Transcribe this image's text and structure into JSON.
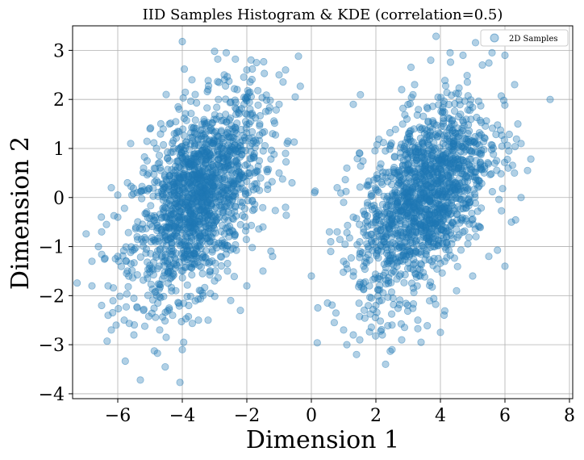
{
  "chart_data": {
    "type": "scatter",
    "title": "IID Samples Histogram & KDE (correlation=0.5)",
    "xlabel": "Dimension 1",
    "ylabel": "Dimension 2",
    "xlim": [
      -7.4,
      8.1
    ],
    "ylim": [
      -4.1,
      3.5
    ],
    "xticks": [
      -6,
      -4,
      -2,
      0,
      2,
      4,
      6,
      8
    ],
    "yticks": [
      -4,
      -3,
      -2,
      -1,
      0,
      1,
      2,
      3
    ],
    "xtick_labels": [
      "−6",
      "−4",
      "−2",
      "0",
      "2",
      "4",
      "6",
      "8"
    ],
    "ytick_labels": [
      "−4",
      "−3",
      "−2",
      "−1",
      "0",
      "1",
      "2",
      "3"
    ],
    "grid": true,
    "legend_position": "top-right",
    "point_color": "#1f77b4",
    "point_alpha": 0.35,
    "series": [
      {
        "name": "2D Samples",
        "clusters": [
          {
            "center": [
              -3.5,
              0.0
            ],
            "std": [
              1.0,
              1.0
            ],
            "correlation": 0.5,
            "count": 1500
          },
          {
            "center": [
              3.5,
              0.0
            ],
            "std": [
              1.0,
              1.0
            ],
            "correlation": 0.5,
            "count": 1500
          }
        ],
        "points": [
          [
            -4.0,
            3.18
          ],
          [
            -3.0,
            2.98
          ],
          [
            -2.9,
            2.82
          ],
          [
            -0.4,
            2.88
          ],
          [
            -0.8,
            2.6
          ],
          [
            -1.7,
            2.75
          ],
          [
            -1.0,
            2.5
          ],
          [
            -0.5,
            2.05
          ],
          [
            -1.0,
            1.9
          ],
          [
            -2.0,
            2.6
          ],
          [
            -3.7,
            2.4
          ],
          [
            -5.3,
            -3.72
          ],
          [
            -4.0,
            -3.1
          ],
          [
            -4.5,
            -2.85
          ],
          [
            -4.7,
            -2.7
          ],
          [
            -5.5,
            -2.8
          ],
          [
            -6.2,
            -2.7
          ],
          [
            -6.3,
            -2.4
          ],
          [
            -6.5,
            -2.2
          ],
          [
            -6.8,
            -1.8
          ],
          [
            -6.8,
            -1.3
          ],
          [
            -6.6,
            -1.0
          ],
          [
            -6.5,
            -0.7
          ],
          [
            -6.0,
            -0.4
          ],
          [
            -6.2,
            0.2
          ],
          [
            -6.0,
            0.05
          ],
          [
            -5.6,
            1.1
          ],
          [
            -5.0,
            1.4
          ],
          [
            -4.5,
            2.1
          ],
          [
            -3.5,
            -2.5
          ],
          [
            -3.2,
            -2.5
          ],
          [
            -2.5,
            -2.1
          ],
          [
            -2.2,
            -2.3
          ],
          [
            -1.5,
            -1.5
          ],
          [
            -1.2,
            -1.2
          ],
          [
            -1.5,
            -0.6
          ],
          [
            -0.8,
            -0.2
          ],
          [
            -0.6,
            0.3
          ],
          [
            -0.8,
            0.9
          ],
          [
            -1.0,
            0.5
          ],
          [
            -1.2,
            1.3
          ],
          [
            0.1,
            0.1
          ],
          [
            0.0,
            -1.6
          ],
          [
            0.2,
            -2.25
          ],
          [
            0.5,
            -2.15
          ],
          [
            1.0,
            -2.7
          ],
          [
            1.3,
            -2.8
          ],
          [
            1.1,
            -3.0
          ],
          [
            1.4,
            -3.2
          ],
          [
            1.5,
            -2.9
          ],
          [
            2.2,
            -2.8
          ],
          [
            2.5,
            -2.6
          ],
          [
            2.8,
            -2.9
          ],
          [
            3.3,
            -2.5
          ],
          [
            3.4,
            -2.95
          ],
          [
            2.3,
            -3.4
          ],
          [
            2.5,
            -3.1
          ],
          [
            4.0,
            -2.75
          ],
          [
            4.5,
            -1.9
          ],
          [
            5.0,
            -1.6
          ],
          [
            5.5,
            -1.2
          ],
          [
            6.0,
            -1.4
          ],
          [
            6.2,
            -0.5
          ],
          [
            6.5,
            0.0
          ],
          [
            6.1,
            0.6
          ],
          [
            6.7,
            0.55
          ],
          [
            6.5,
            1.1
          ],
          [
            6.4,
            1.5
          ],
          [
            7.4,
            2.0
          ],
          [
            6.3,
            2.3
          ],
          [
            6.0,
            2.9
          ],
          [
            5.6,
            2.95
          ],
          [
            5.3,
            2.7
          ],
          [
            4.3,
            2.95
          ],
          [
            4.7,
            2.9
          ],
          [
            3.7,
            2.8
          ],
          [
            3.2,
            2.3
          ],
          [
            2.8,
            2.2
          ],
          [
            1.3,
            1.9
          ],
          [
            1.5,
            0.9
          ],
          [
            1.1,
            0.6
          ],
          [
            0.8,
            0.2
          ],
          [
            1.0,
            -0.1
          ],
          [
            1.3,
            -0.4
          ],
          [
            0.8,
            -0.7
          ],
          [
            0.6,
            -0.9
          ],
          [
            0.6,
            -1.1
          ],
          [
            1.0,
            -1.3
          ],
          [
            1.3,
            -1.6
          ],
          [
            1.8,
            -1.8
          ],
          [
            2.0,
            -2.2
          ],
          [
            -6.3,
            -1.8
          ],
          [
            -5.8,
            -2.5
          ],
          [
            -5.2,
            -2.3
          ],
          [
            -4.8,
            -2.0
          ],
          [
            -4.2,
            -1.9
          ],
          [
            -5.7,
            -1.5
          ],
          [
            -6.0,
            -1.2
          ],
          [
            -5.4,
            -0.8
          ],
          [
            -5.7,
            0.3
          ],
          [
            -5.2,
            0.6
          ],
          [
            -4.8,
            1.0
          ],
          [
            -4.4,
            1.5
          ],
          [
            -4.1,
            1.8
          ],
          [
            -3.6,
            2.1
          ],
          [
            -3.2,
            2.2
          ],
          [
            -2.7,
            2.5
          ],
          [
            -2.3,
            2.2
          ],
          [
            -1.9,
            1.8
          ],
          [
            -1.6,
            1.5
          ],
          [
            -2.0,
            -1.8
          ],
          [
            -2.6,
            -1.5
          ],
          [
            -3.0,
            -1.7
          ],
          [
            -3.8,
            -2.2
          ],
          [
            -4.3,
            -2.4
          ]
        ]
      }
    ]
  }
}
